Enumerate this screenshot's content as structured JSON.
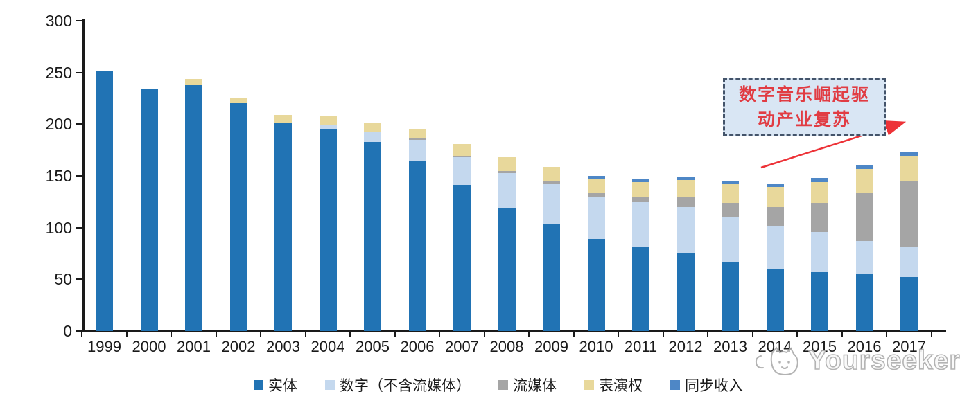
{
  "chart_data": {
    "type": "bar",
    "stacked": true,
    "title": "",
    "xlabel": "",
    "ylabel": "",
    "ylim": [
      0,
      300
    ],
    "yticks": [
      0,
      50,
      100,
      150,
      200,
      250,
      300
    ],
    "grid": false,
    "legend_position": "bottom",
    "categories": [
      "1999",
      "2000",
      "2001",
      "2002",
      "2003",
      "2004",
      "2005",
      "2006",
      "2007",
      "2008",
      "2009",
      "2010",
      "2011",
      "2012",
      "2013",
      "2014",
      "2015",
      "2016",
      "2017"
    ],
    "series": [
      {
        "name": "实体",
        "color": "#2173B4",
        "values": [
          252,
          234,
          238,
          220,
          201,
          195,
          183,
          164,
          141,
          119,
          104,
          89,
          81,
          76,
          67,
          60,
          57,
          55,
          52
        ]
      },
      {
        "name": "数字（不含流媒体）",
        "color": "#C4D8EE",
        "values": [
          0,
          0,
          0,
          0,
          0,
          4,
          10,
          21,
          27,
          34,
          38,
          41,
          44,
          44,
          43,
          41,
          39,
          32,
          29
        ]
      },
      {
        "name": "流媒体",
        "color": "#A5A5A5",
        "values": [
          0,
          0,
          0,
          0,
          0,
          0,
          0,
          1,
          1,
          2,
          3,
          3,
          4,
          9,
          14,
          19,
          28,
          46,
          64
        ]
      },
      {
        "name": "表演权",
        "color": "#E8D89B",
        "values": [
          0,
          0,
          6,
          6,
          8,
          9,
          8,
          9,
          12,
          13,
          14,
          14,
          15,
          17,
          18,
          19,
          20,
          24,
          24
        ]
      },
      {
        "name": "同步收入",
        "color": "#4E87C6",
        "values": [
          0,
          0,
          0,
          0,
          0,
          0,
          0,
          0,
          0,
          0,
          0,
          3,
          3,
          3,
          3,
          3,
          4,
          4,
          4
        ]
      }
    ]
  },
  "annotation": {
    "lines": [
      "数字音乐崛起驱",
      "动产业复苏"
    ]
  },
  "watermark": {
    "text": "Yourseeker"
  },
  "colors": {
    "annotation_text": "#E13C43",
    "annotation_border": "#44546A",
    "annotation_fill": "#D9E6F4",
    "arrow": "#ED3237",
    "axis": "#1a1a1a",
    "watermark_stroke": "#ADADAD"
  }
}
